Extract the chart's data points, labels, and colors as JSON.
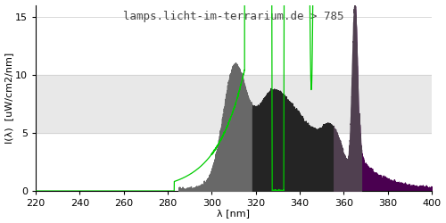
{
  "title": "lamps.licht-im-terrarium.de > 785",
  "xlabel": "λ [nm]",
  "ylabel": "I(λ)  [uW/cm2/nm]",
  "xlim": [
    220,
    400
  ],
  "ylim": [
    0,
    16
  ],
  "yticks": [
    0,
    5,
    10,
    15
  ],
  "xticks": [
    220,
    240,
    260,
    280,
    300,
    320,
    340,
    360,
    380,
    400
  ],
  "shade_ymin": 5,
  "shade_ymax": 10,
  "shade_color": "#e8e8e8",
  "bg_color": "#ffffff",
  "region1_xmin": 285,
  "region1_xmax": 318,
  "region1_color": "#686868",
  "region2_xmin": 315,
  "region2_xmax": 355,
  "region2_color": "#242424",
  "region3_xmin": 350,
  "region3_xmax": 368,
  "region3_color": "#504050",
  "region4_xmin": 365,
  "region4_xmax": 400,
  "region4_color": "#4a0050",
  "green_line_color": "#00cc00",
  "title_fontsize": 9,
  "axis_fontsize": 8,
  "tick_fontsize": 8
}
